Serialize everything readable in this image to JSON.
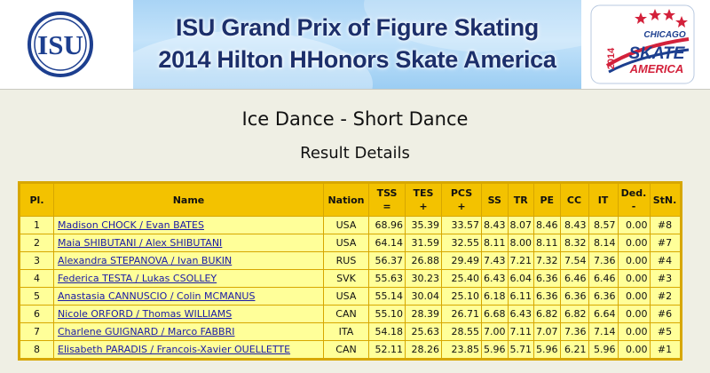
{
  "header": {
    "org_logo_text": "ISU",
    "banner_line1": "ISU Grand Prix of Figure Skating",
    "banner_line2": "2014 Hilton HHonors Skate America",
    "event_logo": {
      "city": "CHICAGO",
      "year": "2014",
      "word1": "SKATE",
      "word2": "AMERICA"
    }
  },
  "page": {
    "title": "Ice Dance - Short Dance",
    "subtitle": "Result Details"
  },
  "table": {
    "columns": {
      "pl": "Pl.",
      "name": "Name",
      "nation": "Nation",
      "tss_top": "TSS",
      "tss_bot": "=",
      "tes_top": "TES",
      "tes_bot": "+",
      "pcs_top": "PCS",
      "pcs_bot": "+",
      "ss": "SS",
      "tr": "TR",
      "pe": "PE",
      "cc": "CC",
      "it": "IT",
      "ded_top": "Ded.",
      "ded_bot": "-",
      "stn": "StN."
    },
    "rows": [
      {
        "pl": "1",
        "name": "Madison CHOCK / Evan BATES",
        "nation": "USA",
        "tss": "68.96",
        "tes": "35.39",
        "pcs": "33.57",
        "ss": "8.43",
        "tr": "8.07",
        "pe": "8.46",
        "cc": "8.43",
        "it": "8.57",
        "ded": "0.00",
        "stn": "#8"
      },
      {
        "pl": "2",
        "name": "Maia SHIBUTANI / Alex SHIBUTANI",
        "nation": "USA",
        "tss": "64.14",
        "tes": "31.59",
        "pcs": "32.55",
        "ss": "8.11",
        "tr": "8.00",
        "pe": "8.11",
        "cc": "8.32",
        "it": "8.14",
        "ded": "0.00",
        "stn": "#7"
      },
      {
        "pl": "3",
        "name": "Alexandra STEPANOVA / Ivan BUKIN",
        "nation": "RUS",
        "tss": "56.37",
        "tes": "26.88",
        "pcs": "29.49",
        "ss": "7.43",
        "tr": "7.21",
        "pe": "7.32",
        "cc": "7.54",
        "it": "7.36",
        "ded": "0.00",
        "stn": "#4"
      },
      {
        "pl": "4",
        "name": "Federica TESTA / Lukas CSOLLEY",
        "nation": "SVK",
        "tss": "55.63",
        "tes": "30.23",
        "pcs": "25.40",
        "ss": "6.43",
        "tr": "6.04",
        "pe": "6.36",
        "cc": "6.46",
        "it": "6.46",
        "ded": "0.00",
        "stn": "#3"
      },
      {
        "pl": "5",
        "name": "Anastasia CANNUSCIO / Colin MCMANUS",
        "nation": "USA",
        "tss": "55.14",
        "tes": "30.04",
        "pcs": "25.10",
        "ss": "6.18",
        "tr": "6.11",
        "pe": "6.36",
        "cc": "6.36",
        "it": "6.36",
        "ded": "0.00",
        "stn": "#2"
      },
      {
        "pl": "6",
        "name": "Nicole ORFORD / Thomas WILLIAMS",
        "nation": "CAN",
        "tss": "55.10",
        "tes": "28.39",
        "pcs": "26.71",
        "ss": "6.68",
        "tr": "6.43",
        "pe": "6.82",
        "cc": "6.82",
        "it": "6.64",
        "ded": "0.00",
        "stn": "#6"
      },
      {
        "pl": "7",
        "name": "Charlene GUIGNARD / Marco FABBRI",
        "nation": "ITA",
        "tss": "54.18",
        "tes": "25.63",
        "pcs": "28.55",
        "ss": "7.00",
        "tr": "7.11",
        "pe": "7.07",
        "cc": "7.36",
        "it": "7.14",
        "ded": "0.00",
        "stn": "#5"
      },
      {
        "pl": "8",
        "name": "Elisabeth PARADIS / Francois-Xavier OUELLETTE",
        "nation": "CAN",
        "tss": "52.11",
        "tes": "28.26",
        "pcs": "23.85",
        "ss": "5.96",
        "tr": "5.71",
        "pe": "5.96",
        "cc": "6.21",
        "it": "5.96",
        "ded": "0.00",
        "stn": "#1"
      }
    ]
  }
}
